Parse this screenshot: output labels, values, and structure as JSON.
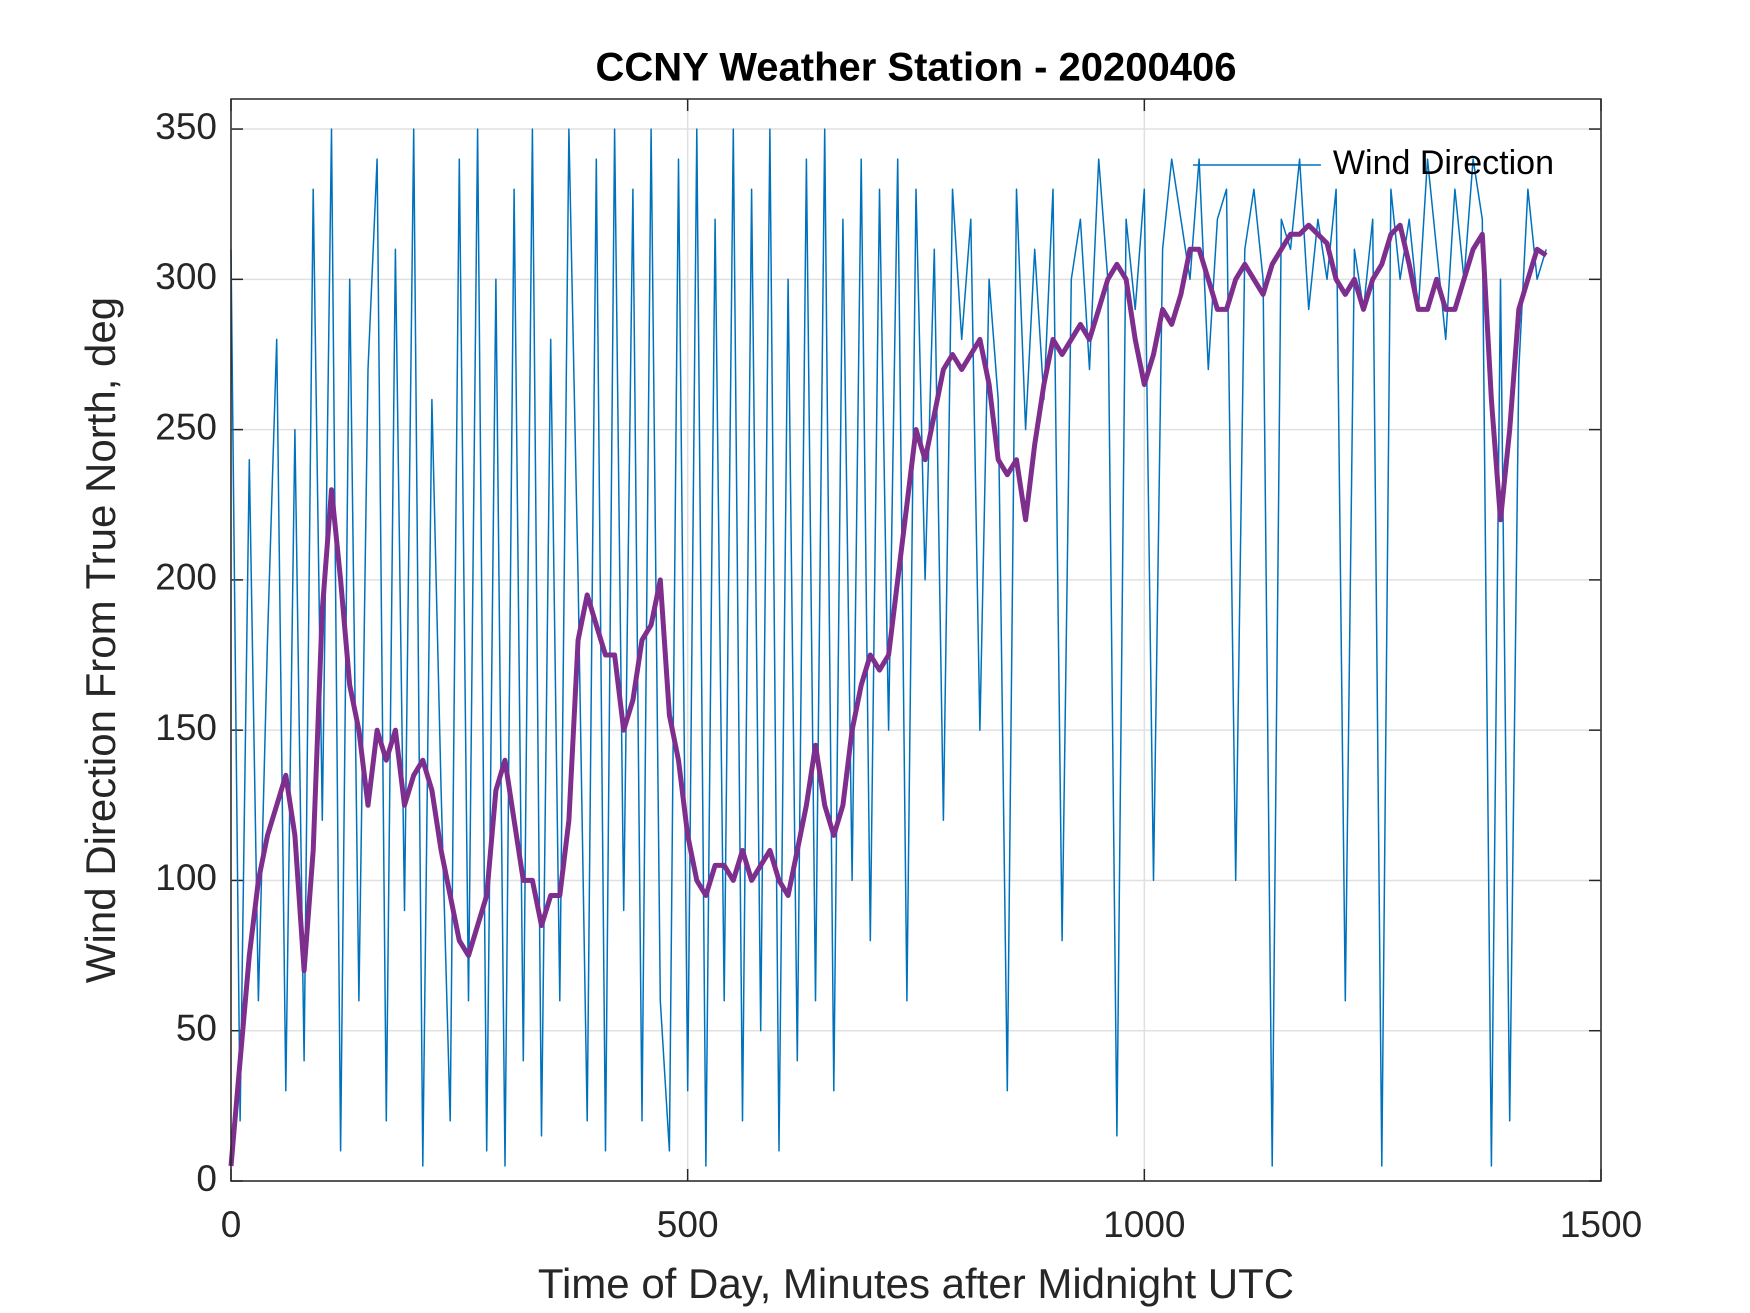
{
  "chart_data": {
    "type": "line",
    "title": "CCNY Weather Station - 20200406",
    "x_label": "Time of Day, Minutes after Midnight UTC",
    "y_label": "Wind Direction From True North, deg",
    "x": [
      0,
      10,
      20,
      30,
      40,
      50,
      60,
      70,
      80,
      90,
      100,
      110,
      120,
      130,
      140,
      150,
      160,
      170,
      180,
      190,
      200,
      210,
      220,
      230,
      240,
      250,
      260,
      270,
      280,
      290,
      300,
      310,
      320,
      330,
      340,
      350,
      360,
      370,
      380,
      390,
      400,
      410,
      420,
      430,
      440,
      450,
      460,
      470,
      480,
      490,
      500,
      510,
      520,
      530,
      540,
      550,
      560,
      570,
      580,
      590,
      600,
      610,
      620,
      630,
      640,
      650,
      660,
      670,
      680,
      690,
      700,
      710,
      720,
      730,
      740,
      750,
      760,
      770,
      780,
      790,
      800,
      810,
      820,
      830,
      840,
      850,
      860,
      870,
      880,
      890,
      900,
      910,
      920,
      930,
      940,
      950,
      960,
      970,
      980,
      990,
      1000,
      1010,
      1020,
      1030,
      1040,
      1050,
      1060,
      1070,
      1080,
      1090,
      1100,
      1110,
      1120,
      1130,
      1140,
      1150,
      1160,
      1170,
      1180,
      1190,
      1200,
      1210,
      1220,
      1230,
      1240,
      1250,
      1260,
      1270,
      1280,
      1290,
      1300,
      1310,
      1320,
      1330,
      1340,
      1350,
      1360,
      1370,
      1380,
      1390,
      1400,
      1410,
      1420,
      1430,
      1440
    ],
    "series": [
      {
        "name": "Wind Direction",
        "color": "#0072bd",
        "width": 1.5,
        "values": [
          310,
          20,
          240,
          60,
          180,
          280,
          30,
          250,
          40,
          330,
          120,
          350,
          10,
          300,
          60,
          270,
          340,
          20,
          310,
          90,
          350,
          5,
          260,
          130,
          20,
          340,
          60,
          350,
          10,
          300,
          5,
          330,
          40,
          350,
          15,
          280,
          60,
          350,
          200,
          20,
          340,
          10,
          350,
          90,
          330,
          20,
          350,
          60,
          10,
          340,
          30,
          350,
          5,
          320,
          60,
          350,
          20,
          330,
          50,
          350,
          10,
          300,
          40,
          340,
          60,
          350,
          30,
          320,
          100,
          340,
          80,
          330,
          150,
          340,
          60,
          330,
          200,
          310,
          120,
          330,
          280,
          320,
          150,
          300,
          260,
          30,
          330,
          250,
          310,
          260,
          330,
          80,
          300,
          320,
          270,
          340,
          300,
          15,
          320,
          290,
          330,
          100,
          310,
          340,
          320,
          300,
          340,
          270,
          320,
          330,
          100,
          310,
          330,
          300,
          5,
          320,
          310,
          340,
          290,
          320,
          300,
          330,
          60,
          310,
          290,
          320,
          5,
          330,
          300,
          320,
          290,
          340,
          310,
          280,
          330,
          300,
          340,
          320,
          5,
          300,
          20,
          270,
          330,
          300,
          310
        ]
      },
      {
        "color": "#7e2f8e",
        "width": 5,
        "values": [
          5,
          40,
          75,
          100,
          115,
          125,
          135,
          115,
          70,
          110,
          190,
          230,
          200,
          165,
          150,
          125,
          150,
          140,
          150,
          125,
          135,
          140,
          130,
          110,
          95,
          80,
          75,
          85,
          95,
          130,
          140,
          120,
          100,
          100,
          85,
          95,
          95,
          120,
          180,
          195,
          185,
          175,
          175,
          150,
          160,
          180,
          185,
          200,
          155,
          140,
          115,
          100,
          95,
          105,
          105,
          100,
          110,
          100,
          105,
          110,
          100,
          95,
          110,
          125,
          145,
          125,
          115,
          125,
          150,
          165,
          175,
          170,
          175,
          200,
          225,
          250,
          240,
          255,
          270,
          275,
          270,
          275,
          280,
          265,
          240,
          235,
          240,
          220,
          245,
          265,
          280,
          275,
          280,
          285,
          280,
          290,
          300,
          305,
          300,
          280,
          265,
          275,
          290,
          285,
          295,
          310,
          310,
          300,
          290,
          290,
          300,
          305,
          300,
          295,
          305,
          310,
          315,
          315,
          318,
          315,
          312,
          300,
          295,
          300,
          290,
          300,
          305,
          315,
          318,
          305,
          290,
          290,
          300,
          290,
          290,
          300,
          310,
          315,
          260,
          220,
          250,
          290,
          300,
          310,
          308
        ]
      }
    ],
    "xlim": [
      0,
      1500
    ],
    "xticks": [
      0,
      500,
      1000,
      1500
    ],
    "ylim": [
      0,
      360
    ],
    "yticks": [
      0,
      50,
      100,
      150,
      200,
      250,
      300,
      350
    ],
    "grid": true,
    "legend": "northeast"
  }
}
